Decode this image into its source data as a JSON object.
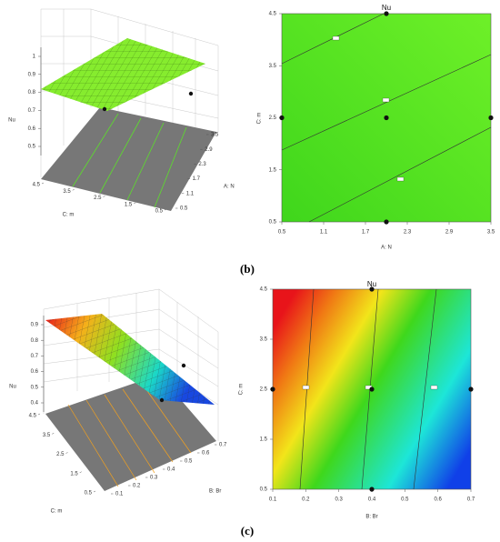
{
  "chart_data": [
    {
      "type": "surface3d",
      "zlabel": "Nu",
      "xlabel": "C: m",
      "ylabel": "A: N",
      "zlim": [
        0.5,
        1
      ],
      "zticks": [
        0.5,
        0.6,
        0.7,
        0.8,
        0.9,
        1
      ],
      "xlim": [
        4.5,
        0.5
      ],
      "xticks": [
        4.5,
        3.5,
        2.5,
        1.5,
        0.5
      ],
      "ylim": [
        0.5,
        3.5
      ],
      "yticks": [
        0.5,
        1.1,
        1.7,
        2.3,
        2.9,
        3.5
      ]
    },
    {
      "type": "contour",
      "panel_label": "(b)",
      "title": "Nu",
      "xlabel": "A: N",
      "ylabel": "C: m",
      "xlim": [
        0.5,
        3.5
      ],
      "xticks": [
        0.5,
        1.1,
        1.7,
        2.3,
        2.9,
        3.5
      ],
      "ylim": [
        0.5,
        4.5
      ],
      "yticks": [
        0.5,
        1.5,
        2.5,
        3.5,
        4.5
      ],
      "points": {
        "x": [
          0.5,
          2,
          2,
          2,
          3.5
        ],
        "y": [
          2.5,
          4.5,
          2.5,
          0.5,
          2.5
        ]
      }
    },
    {
      "type": "surface3d",
      "zlabel": "Nu",
      "xlabel": "C: m",
      "ylabel": "B: Br",
      "zlim": [
        0.4,
        0.9
      ],
      "zticks": [
        0.4,
        0.5,
        0.6,
        0.7,
        0.8,
        0.9
      ],
      "xlim": [
        4.5,
        0.5
      ],
      "xticks": [
        4.5,
        3.5,
        2.5,
        1.5,
        0.5
      ],
      "ylim": [
        0.1,
        0.7
      ],
      "yticks": [
        0.1,
        0.2,
        0.3,
        0.4,
        0.5,
        0.6,
        0.7
      ]
    },
    {
      "type": "contour",
      "panel_label": "(c)",
      "title": "Nu",
      "xlabel": "B: Br",
      "ylabel": "C: m",
      "xlim": [
        0.1,
        0.7
      ],
      "xticks": [
        0.1,
        0.2,
        0.3,
        0.4,
        0.5,
        0.6,
        0.7
      ],
      "ylim": [
        0.5,
        4.5
      ],
      "yticks": [
        0.5,
        1.5,
        2.5,
        3.5,
        4.5
      ],
      "points": {
        "x": [
          0.1,
          0.4,
          0.4,
          0.4,
          0.7
        ],
        "y": [
          2.5,
          4.5,
          2.5,
          0.5,
          2.5
        ]
      }
    }
  ]
}
